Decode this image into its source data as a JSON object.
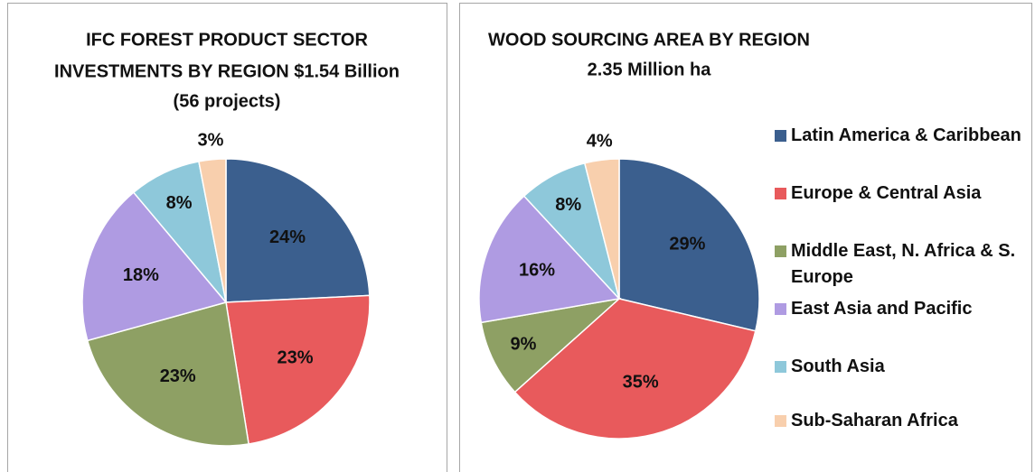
{
  "chart_data": [
    {
      "type": "pie",
      "title": [
        "IFC FOREST PRODUCT SECTOR",
        "INVESTMENTS BY REGION $1.54 Billion",
        "(56 projects)"
      ],
      "values": [
        24,
        23,
        23,
        18,
        8,
        3
      ],
      "value_labels": [
        "24%",
        "23%",
        "23%",
        "18%",
        "8%",
        "3%"
      ],
      "colors": [
        "#3b5f8e",
        "#e85a5c",
        "#8ea064",
        "#af9be2",
        "#8ec8da",
        "#f8cfad"
      ]
    },
    {
      "type": "pie",
      "title": [
        "WOOD SOURCING AREA BY REGION",
        "2.35 Million ha"
      ],
      "categories": [
        "Latin America & Caribbean",
        "Europe & Central Asia",
        "Middle East, N. Africa & S. Europe",
        "East Asia and Pacific",
        "South Asia",
        "Sub-Saharan Africa"
      ],
      "values": [
        29,
        35,
        9,
        16,
        8,
        4
      ],
      "value_labels": [
        "29%",
        "35%",
        "9%",
        "16%",
        "8%",
        "4%"
      ],
      "colors": [
        "#3b5f8e",
        "#e85a5c",
        "#8ea064",
        "#af9be2",
        "#8ec8da",
        "#f8cfad"
      ],
      "legend": "right"
    }
  ]
}
